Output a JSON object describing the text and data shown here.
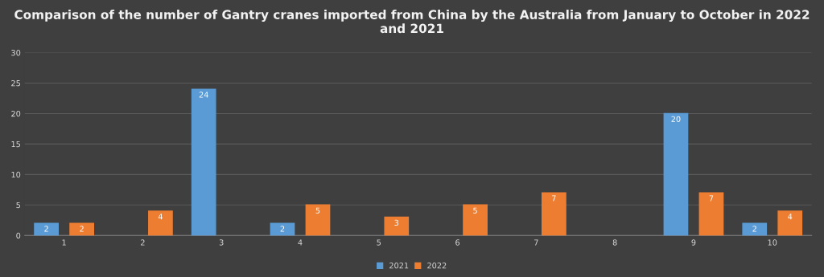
{
  "chart_data": {
    "type": "bar",
    "title": "Comparison of the number of Gantry cranes imported from China by the Australia from January to October in 2022 and 2021",
    "categories": [
      "1",
      "2",
      "3",
      "4",
      "5",
      "6",
      "7",
      "8",
      "9",
      "10"
    ],
    "series": [
      {
        "name": "2021",
        "color": "#5b9bd5",
        "values": [
          2,
          null,
          24,
          2,
          null,
          null,
          null,
          null,
          20,
          2
        ]
      },
      {
        "name": "2022",
        "color": "#ed7d31",
        "values": [
          2,
          4,
          null,
          5,
          3,
          5,
          7,
          null,
          7,
          4
        ]
      }
    ],
    "ylim": [
      0,
      30
    ],
    "yticks": [
      0,
      5,
      10,
      15,
      20,
      25,
      30
    ],
    "grid": "y",
    "legend": "bottom",
    "data_labels": true
  }
}
